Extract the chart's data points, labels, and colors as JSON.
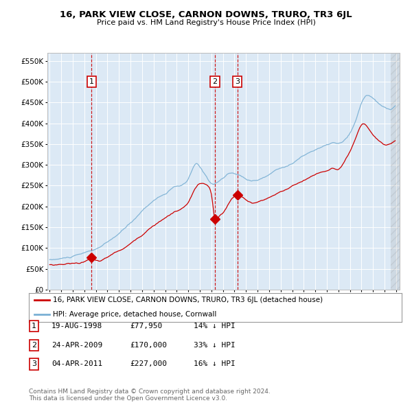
{
  "title": "16, PARK VIEW CLOSE, CARNON DOWNS, TRURO, TR3 6JL",
  "subtitle": "Price paid vs. HM Land Registry's House Price Index (HPI)",
  "ylim": [
    0,
    570000
  ],
  "ytick_vals": [
    0,
    50000,
    100000,
    150000,
    200000,
    250000,
    300000,
    350000,
    400000,
    450000,
    500000,
    550000
  ],
  "ytick_labels": [
    "£0",
    "£50K",
    "£100K",
    "£150K",
    "£200K",
    "£250K",
    "£300K",
    "£350K",
    "£400K",
    "£450K",
    "£500K",
    "£550K"
  ],
  "background_color": "#dce9f5",
  "grid_color": "#ffffff",
  "sale_prices": [
    77950,
    170000,
    227000
  ],
  "sale_years": [
    1998.63,
    2009.31,
    2011.26
  ],
  "sale_labels": [
    "1",
    "2",
    "3"
  ],
  "vline_color": "#cc0000",
  "red_line_color": "#cc0000",
  "blue_line_color": "#7ab0d4",
  "legend_label_red": "16, PARK VIEW CLOSE, CARNON DOWNS, TRURO, TR3 6JL (detached house)",
  "legend_label_blue": "HPI: Average price, detached house, Cornwall",
  "table_entries": [
    {
      "num": "1",
      "date": "19-AUG-1998",
      "price": "£77,950",
      "hpi": "14% ↓ HPI"
    },
    {
      "num": "2",
      "date": "24-APR-2009",
      "price": "£170,000",
      "hpi": "33% ↓ HPI"
    },
    {
      "num": "3",
      "date": "04-APR-2011",
      "price": "£227,000",
      "hpi": "16% ↓ HPI"
    }
  ],
  "footnote": "Contains HM Land Registry data © Crown copyright and database right 2024.\nThis data is licensed under the Open Government Licence v3.0.",
  "xmin": 1995.0,
  "xmax": 2025.0
}
